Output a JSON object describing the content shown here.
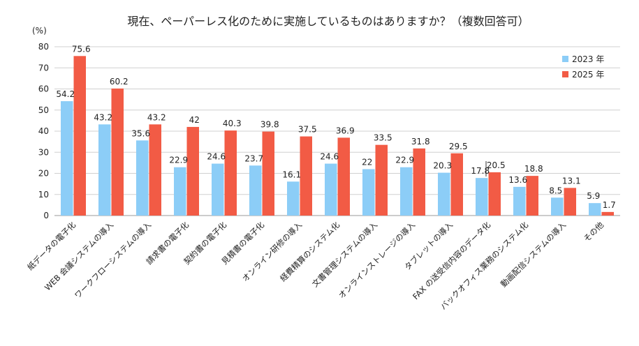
{
  "chart_data": {
    "type": "bar",
    "title": "現在、ペーパーレス化のために実施しているものはありますか？（複数回答可）",
    "ylabel": "(%)",
    "ylim": [
      0,
      80
    ],
    "yticks": [
      0,
      10,
      20,
      30,
      40,
      50,
      60,
      70,
      80
    ],
    "grid": true,
    "legend_position": "top-right",
    "categories": [
      "紙データの電子化",
      "WEB 会議システムの導入",
      "ワークフローシステムの導入",
      "請求書の電子化",
      "契約書の電子化",
      "見積書の電子化",
      "オンライン研修の導入",
      "経費精算のシステム化",
      "文書管理システムの導入",
      "オンラインストレージの導入",
      "タブレットの導入",
      "FAX の送受信内容のデータ化",
      "バックオフィス業務のシステム化",
      "動画配信システムの導入",
      "その他"
    ],
    "series": [
      {
        "name": "2023 年",
        "color": "#8ccdf7",
        "values": [
          54.2,
          43.2,
          35.6,
          22.9,
          24.6,
          23.7,
          16.1,
          24.6,
          22,
          22.9,
          20.3,
          17.8,
          13.6,
          8.5,
          5.9
        ]
      },
      {
        "name": "2025 年",
        "color": "#f25b45",
        "values": [
          75.6,
          60.2,
          43.2,
          42,
          40.3,
          39.8,
          37.5,
          36.9,
          33.5,
          31.8,
          29.5,
          20.5,
          18.8,
          13.1,
          1.7
        ]
      }
    ]
  }
}
